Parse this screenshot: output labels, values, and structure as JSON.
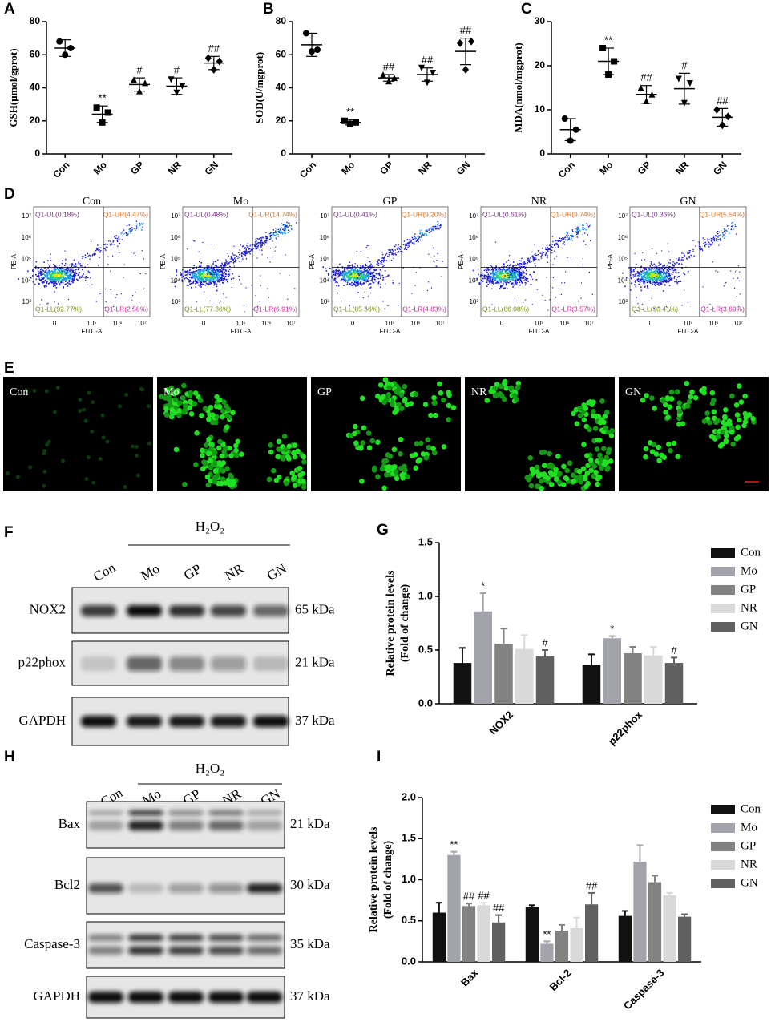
{
  "chart_data": [
    {
      "panel": "A",
      "type": "dot",
      "ylabel": "GSH(μmol/gprot)",
      "categories": [
        "Con",
        "Mo",
        "GP",
        "NR",
        "GN"
      ],
      "values": [
        64,
        24,
        42,
        41,
        55
      ],
      "errors": [
        5,
        5,
        4,
        5,
        4
      ],
      "points": [
        [
          68,
          60,
          64
        ],
        [
          28,
          19,
          25
        ],
        [
          45,
          38,
          43
        ],
        [
          45,
          37,
          41
        ],
        [
          58,
          51,
          56
        ]
      ],
      "annotations": [
        null,
        "**",
        "#",
        "#",
        "##"
      ],
      "ylim": [
        0,
        80
      ],
      "yticks": [
        0,
        20,
        40,
        60,
        80
      ]
    },
    {
      "panel": "B",
      "type": "dot",
      "ylabel": "SOD(U/mgprot)",
      "categories": [
        "Con",
        "Mo",
        "GP",
        "NR",
        "GN"
      ],
      "values": [
        66,
        19,
        46,
        48,
        62
      ],
      "errors": [
        7,
        1.5,
        2,
        4,
        8
      ],
      "points": [
        [
          73,
          62,
          63
        ],
        [
          20,
          18,
          19
        ],
        [
          48,
          44,
          46
        ],
        [
          52,
          43,
          49
        ],
        [
          67,
          51,
          68
        ]
      ],
      "annotations": [
        null,
        "**",
        "##",
        "##",
        "##"
      ],
      "ylim": [
        0,
        80
      ],
      "yticks": [
        0,
        20,
        40,
        60,
        80
      ]
    },
    {
      "panel": "C",
      "type": "dot",
      "ylabel": "MDA(nmol/mgprot)",
      "categories": [
        "Con",
        "Mo",
        "GP",
        "NR",
        "GN"
      ],
      "values": [
        5.5,
        21,
        13.5,
        14.8,
        8.3
      ],
      "errors": [
        2.5,
        3,
        2,
        3.5,
        2
      ],
      "points": [
        [
          8,
          3,
          5.5
        ],
        [
          24,
          18,
          21
        ],
        [
          15,
          12,
          13.5
        ],
        [
          17,
          11.5,
          16
        ],
        [
          10,
          6.5,
          8.5
        ]
      ],
      "annotations": [
        null,
        "**",
        "##",
        "#",
        "##"
      ],
      "ylim": [
        0,
        30
      ],
      "yticks": [
        0,
        10,
        20,
        30
      ]
    },
    {
      "panel": "G",
      "type": "bar",
      "ylabel": [
        "Relative protein levels",
        "(Fold of change)"
      ],
      "categories": [
        "NOX2",
        "p22phox"
      ],
      "series": [
        {
          "name": "Con",
          "color": "#111111",
          "values": [
            0.38,
            0.36
          ],
          "errors": [
            0.14,
            0.1
          ],
          "annotations": [
            null,
            null
          ]
        },
        {
          "name": "Mo",
          "color": "#a3a3ab",
          "values": [
            0.86,
            0.61
          ],
          "errors": [
            0.17,
            0.02
          ],
          "annotations": [
            "*",
            "*"
          ]
        },
        {
          "name": "GP",
          "color": "#828282",
          "values": [
            0.56,
            0.47
          ],
          "errors": [
            0.14,
            0.06
          ],
          "annotations": [
            null,
            null
          ]
        },
        {
          "name": "NR",
          "color": "#d9d9d9",
          "values": [
            0.51,
            0.45
          ],
          "errors": [
            0.13,
            0.08
          ],
          "annotations": [
            null,
            null
          ]
        },
        {
          "name": "GN",
          "color": "#606060",
          "values": [
            0.44,
            0.38
          ],
          "errors": [
            0.06,
            0.05
          ],
          "annotations": [
            "#",
            "#"
          ]
        }
      ],
      "ylim": [
        0,
        1.5
      ],
      "yticks": [
        {
          "value": 0,
          "label": "0.0"
        },
        {
          "value": 0.5,
          "label": "0.5"
        },
        {
          "value": 1,
          "label": "1.0"
        },
        {
          "value": 1.5,
          "label": "1.5"
        }
      ],
      "legend": "right"
    },
    {
      "panel": "I",
      "type": "bar",
      "ylabel": [
        "Relative protein levels",
        "(Fold of change)"
      ],
      "categories": [
        "Bax",
        "Bcl-2",
        "Caspase-3"
      ],
      "series": [
        {
          "name": "Con",
          "color": "#111111",
          "values": [
            0.6,
            0.67,
            0.56
          ],
          "errors": [
            0.12,
            0.02,
            0.06
          ],
          "annotations": [
            null,
            null,
            null
          ]
        },
        {
          "name": "Mo",
          "color": "#a3a3ab",
          "values": [
            1.3,
            0.22,
            1.22
          ],
          "errors": [
            0.04,
            0.03,
            0.2
          ],
          "annotations": [
            "**",
            "**",
            null
          ]
        },
        {
          "name": "GP",
          "color": "#828282",
          "values": [
            0.68,
            0.38,
            0.97
          ],
          "errors": [
            0.03,
            0.07,
            0.08
          ],
          "annotations": [
            "##",
            null,
            null
          ]
        },
        {
          "name": "NR",
          "color": "#d9d9d9",
          "values": [
            0.69,
            0.41,
            0.81
          ],
          "errors": [
            0.03,
            0.13,
            0.03
          ],
          "annotations": [
            "##",
            null,
            null
          ]
        },
        {
          "name": "GN",
          "color": "#606060",
          "values": [
            0.48,
            0.7,
            0.55
          ],
          "errors": [
            0.09,
            0.14,
            0.03
          ],
          "annotations": [
            "##",
            "##",
            null
          ]
        }
      ],
      "ylim": [
        0,
        2
      ],
      "yticks": [
        {
          "value": 0,
          "label": "0.0"
        },
        {
          "value": 0.5,
          "label": "0.5"
        },
        {
          "value": 1,
          "label": "1.0"
        },
        {
          "value": 1.5,
          "label": "1.5"
        },
        {
          "value": 2,
          "label": "2.0"
        }
      ],
      "legend": "right"
    }
  ],
  "flow_cytometry": {
    "panel": "D",
    "xlabel": "FITC-A",
    "ylabel": "PE-A",
    "xticks": [
      "0",
      "10⁵",
      "10⁶",
      "10⁷"
    ],
    "yticks": [
      "10³",
      "10⁴",
      "10⁵",
      "10⁶",
      "10⁷"
    ],
    "plots": [
      {
        "title": "Con",
        "quadrants": [
          "Q1-UL(0.18%)",
          "Q1-UR(4.47%)",
          "Q1-LL(92.77%)",
          "Q1-LR(2.58%)"
        ]
      },
      {
        "title": "Mo",
        "quadrants": [
          "Q1-UL(0.48%)",
          "Q1-UR(14.74%)",
          "Q1-LL(77.86%)",
          "Q1-LR(6.91%)"
        ]
      },
      {
        "title": "GP",
        "quadrants": [
          "Q1-UL(0.41%)",
          "Q1-UR(9.20%)",
          "Q1-LL(85.56%)",
          "Q1-LR(4.83%)"
        ]
      },
      {
        "title": "NR",
        "quadrants": [
          "Q1-UL(0.61%)",
          "Q1-UR(9.74%)",
          "Q1-LL(86.08%)",
          "Q1-LR(3.57%)"
        ]
      },
      {
        "title": "GN",
        "quadrants": [
          "Q1-UL(0.36%)",
          "Q1-UR(5.54%)",
          "Q1-LL(90.41%)",
          "Q1-LR(3.69%)"
        ]
      }
    ]
  },
  "fluorescence": {
    "panel": "E",
    "labels": [
      "Con",
      "Mo",
      "GP",
      "NR",
      "GN"
    ]
  },
  "blots": [
    {
      "panel": "F",
      "treatment": "H₂O₂",
      "lanes": [
        "Con",
        "Mo",
        "GP",
        "NR",
        "GN"
      ],
      "rows": [
        {
          "name": "NOX2",
          "size": "65 kDa"
        },
        {
          "name": "p22phox",
          "size": "21 kDa"
        },
        {
          "name": "GAPDH",
          "size": "37 kDa"
        }
      ]
    },
    {
      "panel": "H",
      "treatment": "H₂O₂",
      "lanes": [
        "Con",
        "Mo",
        "GP",
        "NR",
        "GN"
      ],
      "rows": [
        {
          "name": "Bax",
          "size": "21 kDa"
        },
        {
          "name": "Bcl2",
          "size": "30 kDa"
        },
        {
          "name": "Caspase-3",
          "size": "35 kDa"
        },
        {
          "name": "GAPDH",
          "size": "37 kDa"
        }
      ]
    }
  ]
}
